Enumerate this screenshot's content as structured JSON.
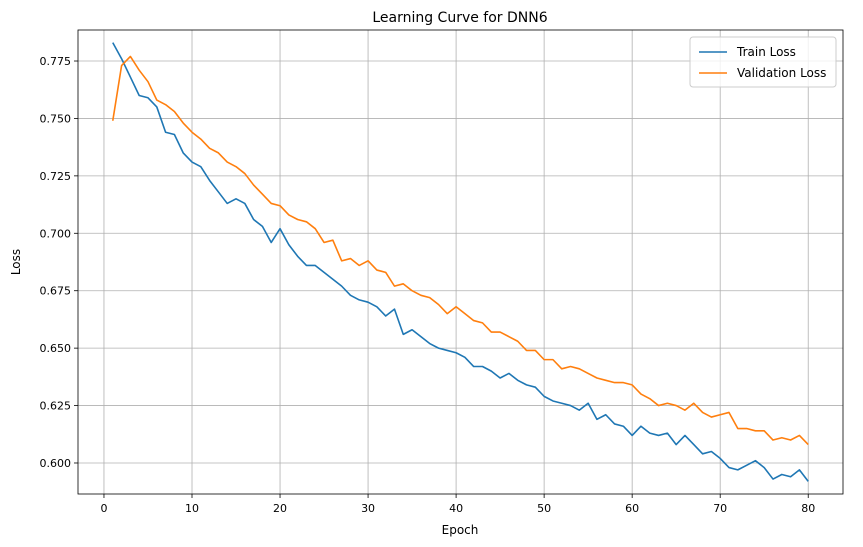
{
  "chart_data": {
    "type": "line",
    "title": "Learning Curve for DNN6",
    "xlabel": "Epoch",
    "ylabel": "Loss",
    "xlim": [
      -2.95,
      83.95
    ],
    "ylim": [
      0.5865,
      0.7885
    ],
    "x_ticks": [
      0,
      10,
      20,
      30,
      40,
      50,
      60,
      70,
      80
    ],
    "x_tick_labels": [
      "0",
      "10",
      "20",
      "30",
      "40",
      "50",
      "60",
      "70",
      "80"
    ],
    "y_ticks": [
      0.6,
      0.625,
      0.65,
      0.675,
      0.7,
      0.725,
      0.75,
      0.775
    ],
    "y_tick_labels": [
      "0.600",
      "0.625",
      "0.650",
      "0.675",
      "0.700",
      "0.725",
      "0.750",
      "0.775"
    ],
    "grid": true,
    "legend_position": "top-right",
    "x": [
      1,
      2,
      3,
      4,
      5,
      6,
      7,
      8,
      9,
      10,
      11,
      12,
      13,
      14,
      15,
      16,
      17,
      18,
      19,
      20,
      21,
      22,
      23,
      24,
      25,
      26,
      27,
      28,
      29,
      30,
      31,
      32,
      33,
      34,
      35,
      36,
      37,
      38,
      39,
      40,
      41,
      42,
      43,
      44,
      45,
      46,
      47,
      48,
      49,
      50,
      51,
      52,
      53,
      54,
      55,
      56,
      57,
      58,
      59,
      60,
      61,
      62,
      63,
      64,
      65,
      66,
      67,
      68,
      69,
      70,
      71,
      72,
      73,
      74,
      75,
      76,
      77,
      78,
      79,
      80
    ],
    "series": [
      {
        "name": "Train Loss",
        "color": "#1f77b4",
        "values": [
          0.783,
          0.776,
          0.768,
          0.76,
          0.759,
          0.755,
          0.744,
          0.743,
          0.735,
          0.731,
          0.729,
          0.723,
          0.718,
          0.713,
          0.715,
          0.713,
          0.706,
          0.703,
          0.696,
          0.702,
          0.695,
          0.69,
          0.686,
          0.686,
          0.683,
          0.68,
          0.677,
          0.673,
          0.671,
          0.67,
          0.668,
          0.664,
          0.667,
          0.656,
          0.658,
          0.655,
          0.652,
          0.65,
          0.649,
          0.648,
          0.646,
          0.642,
          0.642,
          0.64,
          0.637,
          0.639,
          0.636,
          0.634,
          0.633,
          0.629,
          0.627,
          0.626,
          0.625,
          0.623,
          0.626,
          0.619,
          0.621,
          0.617,
          0.616,
          0.612,
          0.616,
          0.613,
          0.612,
          0.613,
          0.608,
          0.612,
          0.608,
          0.604,
          0.605,
          0.602,
          0.598,
          0.597,
          0.599,
          0.601,
          0.598,
          0.593,
          0.595,
          0.594,
          0.597,
          0.592
        ]
      },
      {
        "name": "Validation Loss",
        "color": "#ff7f0e",
        "values": [
          0.749,
          0.773,
          0.777,
          0.771,
          0.766,
          0.758,
          0.756,
          0.753,
          0.748,
          0.744,
          0.741,
          0.737,
          0.735,
          0.731,
          0.729,
          0.726,
          0.721,
          0.717,
          0.713,
          0.712,
          0.708,
          0.706,
          0.705,
          0.702,
          0.696,
          0.697,
          0.688,
          0.689,
          0.686,
          0.688,
          0.684,
          0.683,
          0.677,
          0.678,
          0.675,
          0.673,
          0.672,
          0.669,
          0.665,
          0.668,
          0.665,
          0.662,
          0.661,
          0.657,
          0.657,
          0.655,
          0.653,
          0.649,
          0.649,
          0.645,
          0.645,
          0.641,
          0.642,
          0.641,
          0.639,
          0.637,
          0.636,
          0.635,
          0.635,
          0.634,
          0.63,
          0.628,
          0.625,
          0.626,
          0.625,
          0.623,
          0.626,
          0.622,
          0.62,
          0.621,
          0.622,
          0.615,
          0.615,
          0.614,
          0.614,
          0.61,
          0.611,
          0.61,
          0.612,
          0.608
        ]
      }
    ]
  }
}
